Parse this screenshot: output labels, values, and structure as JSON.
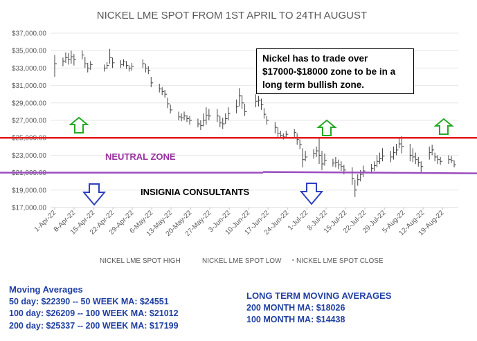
{
  "chart_data": {
    "type": "candlestick",
    "title": "NICKEL LME SPOT FROM 1ST APRIL TO 24TH AUGUST",
    "ylim": [
      17000,
      37000
    ],
    "y_ticks": [
      "$17,000.00",
      "$19,000.00",
      "$21,000.00",
      "$23,000.00",
      "$25,000.00",
      "$27,000.00",
      "$29,000.00",
      "$31,000.00",
      "$33,000.00",
      "$35,000.00",
      "$37,000.00"
    ],
    "x_ticks": [
      "1-Apr-22",
      "8-Apr-22",
      "15-Apr-22",
      "22-Apr-22",
      "29-Apr-22",
      "6-May-22",
      "13-May-22",
      "20-May-22",
      "27-May-22",
      "3-Jun-22",
      "10-Jun-22",
      "17-Jun-22",
      "24-Jun-22",
      "1-Jul-22",
      "8-Jul-22",
      "15-Jul-22",
      "22-Jul-22",
      "29-Jul-22",
      "5-Aug-22",
      "12-Aug-22",
      "19-Aug-22"
    ],
    "legend_position": "bottom",
    "series": [
      {
        "name": "NICKEL LME SPOT HIGH"
      },
      {
        "name": "NICKEL LME SPOT LOW"
      },
      {
        "name": "NICKEL LME SPOT CLOSE"
      }
    ],
    "candles": [
      {
        "d": "2022-04-01",
        "h": 34500,
        "l": 32000,
        "c": 33500
      },
      {
        "d": "2022-04-04",
        "h": 34200,
        "l": 33200,
        "c": 33800
      },
      {
        "d": "2022-04-05",
        "h": 34800,
        "l": 33600,
        "c": 34200
      },
      {
        "d": "2022-04-06",
        "h": 34700,
        "l": 33400,
        "c": 34000
      },
      {
        "d": "2022-04-07",
        "h": 35000,
        "l": 33500,
        "c": 34300
      },
      {
        "d": "2022-04-08",
        "h": 34600,
        "l": 33300,
        "c": 34000
      },
      {
        "d": "2022-04-11",
        "h": 35000,
        "l": 34000,
        "c": 34500
      },
      {
        "d": "2022-04-12",
        "h": 34300,
        "l": 33000,
        "c": 33500
      },
      {
        "d": "2022-04-13",
        "h": 33600,
        "l": 32500,
        "c": 33000
      },
      {
        "d": "2022-04-14",
        "h": 33800,
        "l": 32800,
        "c": 33400
      },
      {
        "d": "2022-04-19",
        "h": 33400,
        "l": 32600,
        "c": 33000
      },
      {
        "d": "2022-04-20",
        "h": 33700,
        "l": 32900,
        "c": 33300
      },
      {
        "d": "2022-04-21",
        "h": 35200,
        "l": 33500,
        "c": 34200
      },
      {
        "d": "2022-04-22",
        "h": 34200,
        "l": 33000,
        "c": 33600
      },
      {
        "d": "2022-04-25",
        "h": 33900,
        "l": 33000,
        "c": 33400
      },
      {
        "d": "2022-04-26",
        "h": 34000,
        "l": 33200,
        "c": 33700
      },
      {
        "d": "2022-04-27",
        "h": 33800,
        "l": 32900,
        "c": 33300
      },
      {
        "d": "2022-04-28",
        "h": 33300,
        "l": 32600,
        "c": 33000
      },
      {
        "d": "2022-04-29",
        "h": 33600,
        "l": 32700,
        "c": 33200
      },
      {
        "d": "2022-05-03",
        "h": 34000,
        "l": 33000,
        "c": 33500
      },
      {
        "d": "2022-05-04",
        "h": 33500,
        "l": 32500,
        "c": 33000
      },
      {
        "d": "2022-05-05",
        "h": 33200,
        "l": 32300,
        "c": 32700
      },
      {
        "d": "2022-05-06",
        "h": 32000,
        "l": 30800,
        "c": 31300
      },
      {
        "d": "2022-05-09",
        "h": 31200,
        "l": 30200,
        "c": 30600
      },
      {
        "d": "2022-05-10",
        "h": 30800,
        "l": 29900,
        "c": 30300
      },
      {
        "d": "2022-05-11",
        "h": 30500,
        "l": 29600,
        "c": 30000
      },
      {
        "d": "2022-05-12",
        "h": 29600,
        "l": 28400,
        "c": 28900
      },
      {
        "d": "2022-05-13",
        "h": 28800,
        "l": 27800,
        "c": 28200
      },
      {
        "d": "2022-05-16",
        "h": 28000,
        "l": 27000,
        "c": 27400
      },
      {
        "d": "2022-05-17",
        "h": 27800,
        "l": 26900,
        "c": 27300
      },
      {
        "d": "2022-05-18",
        "h": 28000,
        "l": 27000,
        "c": 27500
      },
      {
        "d": "2022-05-19",
        "h": 27600,
        "l": 26800,
        "c": 27200
      },
      {
        "d": "2022-05-20",
        "h": 27500,
        "l": 26500,
        "c": 27000
      },
      {
        "d": "2022-05-23",
        "h": 27200,
        "l": 26200,
        "c": 26600
      },
      {
        "d": "2022-05-24",
        "h": 27000,
        "l": 25900,
        "c": 26400
      },
      {
        "d": "2022-05-25",
        "h": 27800,
        "l": 26300,
        "c": 27000
      },
      {
        "d": "2022-05-26",
        "h": 28500,
        "l": 26500,
        "c": 27600
      },
      {
        "d": "2022-05-27",
        "h": 28300,
        "l": 27000,
        "c": 27500
      },
      {
        "d": "2022-05-30",
        "h": 28300,
        "l": 26800,
        "c": 27500
      },
      {
        "d": "2022-05-31",
        "h": 27500,
        "l": 26200,
        "c": 26700
      },
      {
        "d": "2022-06-01",
        "h": 27300,
        "l": 26000,
        "c": 26600
      },
      {
        "d": "2022-06-02",
        "h": 27800,
        "l": 26600,
        "c": 27200
      },
      {
        "d": "2022-06-03",
        "h": 28500,
        "l": 27000,
        "c": 27800
      },
      {
        "d": "2022-06-06",
        "h": 29400,
        "l": 27800,
        "c": 28600
      },
      {
        "d": "2022-06-07",
        "h": 30700,
        "l": 28600,
        "c": 29800
      },
      {
        "d": "2022-06-08",
        "h": 29900,
        "l": 28300,
        "c": 29000
      },
      {
        "d": "2022-06-09",
        "h": 28900,
        "l": 27500,
        "c": 28000
      },
      {
        "d": "2022-06-13",
        "h": 30000,
        "l": 28500,
        "c": 29200
      },
      {
        "d": "2022-06-14",
        "h": 29800,
        "l": 28600,
        "c": 29300
      },
      {
        "d": "2022-06-15",
        "h": 29500,
        "l": 28200,
        "c": 28800
      },
      {
        "d": "2022-06-16",
        "h": 28400,
        "l": 27200,
        "c": 27700
      },
      {
        "d": "2022-06-17",
        "h": 27500,
        "l": 26500,
        "c": 27000
      },
      {
        "d": "2022-06-20",
        "h": 26800,
        "l": 25500,
        "c": 26200
      },
      {
        "d": "2022-06-21",
        "h": 26200,
        "l": 25000,
        "c": 25500
      },
      {
        "d": "2022-06-22",
        "h": 25800,
        "l": 24900,
        "c": 25300
      },
      {
        "d": "2022-06-23",
        "h": 25500,
        "l": 24800,
        "c": 25100
      },
      {
        "d": "2022-06-24",
        "h": 25800,
        "l": 25000,
        "c": 25400
      },
      {
        "d": "2022-06-27",
        "h": 26000,
        "l": 25100,
        "c": 25600
      },
      {
        "d": "2022-06-28",
        "h": 25500,
        "l": 24200,
        "c": 24800
      },
      {
        "d": "2022-06-29",
        "h": 24800,
        "l": 23700,
        "c": 24200
      },
      {
        "d": "2022-06-30",
        "h": 23800,
        "l": 21600,
        "c": 22500
      },
      {
        "d": "2022-07-01",
        "h": 23500,
        "l": 22300,
        "c": 22800
      },
      {
        "d": "2022-07-04",
        "h": 23700,
        "l": 22600,
        "c": 23200
      },
      {
        "d": "2022-07-05",
        "h": 24000,
        "l": 22800,
        "c": 23500
      },
      {
        "d": "2022-07-06",
        "h": 25000,
        "l": 22000,
        "c": 23000
      },
      {
        "d": "2022-07-07",
        "h": 23500,
        "l": 21300,
        "c": 22000
      },
      {
        "d": "2022-07-08",
        "h": 23200,
        "l": 21800,
        "c": 22400
      },
      {
        "d": "2022-07-11",
        "h": 22600,
        "l": 21700,
        "c": 22100
      },
      {
        "d": "2022-07-12",
        "h": 22800,
        "l": 21600,
        "c": 22200
      },
      {
        "d": "2022-07-13",
        "h": 22500,
        "l": 21400,
        "c": 21900
      },
      {
        "d": "2022-07-14",
        "h": 22300,
        "l": 21200,
        "c": 21700
      },
      {
        "d": "2022-07-15",
        "h": 21900,
        "l": 20800,
        "c": 21300
      },
      {
        "d": "2022-07-18",
        "h": 21600,
        "l": 19600,
        "c": 20300
      },
      {
        "d": "2022-07-19",
        "h": 20200,
        "l": 18200,
        "c": 19000
      },
      {
        "d": "2022-07-20",
        "h": 20800,
        "l": 19500,
        "c": 20200
      },
      {
        "d": "2022-07-21",
        "h": 21300,
        "l": 20000,
        "c": 20800
      },
      {
        "d": "2022-07-22",
        "h": 21800,
        "l": 20500,
        "c": 21200
      },
      {
        "d": "2022-07-25",
        "h": 22000,
        "l": 20900,
        "c": 21500
      },
      {
        "d": "2022-07-26",
        "h": 22300,
        "l": 21200,
        "c": 21800
      },
      {
        "d": "2022-07-27",
        "h": 23000,
        "l": 21600,
        "c": 22300
      },
      {
        "d": "2022-07-28",
        "h": 23300,
        "l": 22000,
        "c": 22600
      },
      {
        "d": "2022-07-29",
        "h": 23800,
        "l": 22300,
        "c": 22900
      },
      {
        "d": "2022-08-01",
        "h": 23500,
        "l": 22200,
        "c": 22800
      },
      {
        "d": "2022-08-02",
        "h": 24000,
        "l": 22500,
        "c": 23300
      },
      {
        "d": "2022-08-03",
        "h": 24300,
        "l": 23000,
        "c": 23600
      },
      {
        "d": "2022-08-04",
        "h": 25000,
        "l": 23800,
        "c": 24300
      },
      {
        "d": "2022-08-05",
        "h": 25200,
        "l": 23200,
        "c": 24000
      },
      {
        "d": "2022-08-08",
        "h": 24300,
        "l": 22300,
        "c": 23000
      },
      {
        "d": "2022-08-09",
        "h": 23800,
        "l": 22200,
        "c": 22800
      },
      {
        "d": "2022-08-10",
        "h": 23300,
        "l": 22000,
        "c": 22500
      },
      {
        "d": "2022-08-11",
        "h": 22800,
        "l": 21700,
        "c": 22200
      },
      {
        "d": "2022-08-12",
        "h": 22300,
        "l": 21000,
        "c": 21700
      },
      {
        "d": "2022-08-15",
        "h": 24000,
        "l": 22500,
        "c": 23300
      },
      {
        "d": "2022-08-16",
        "h": 24200,
        "l": 23000,
        "c": 23600
      },
      {
        "d": "2022-08-17",
        "h": 23300,
        "l": 22300,
        "c": 22800
      },
      {
        "d": "2022-08-18",
        "h": 23000,
        "l": 22000,
        "c": 22500
      },
      {
        "d": "2022-08-19",
        "h": 22800,
        "l": 21900,
        "c": 22300
      },
      {
        "d": "2022-08-22",
        "h": 23000,
        "l": 22000,
        "c": 22500
      },
      {
        "d": "2022-08-23",
        "h": 22900,
        "l": 22100,
        "c": 22400
      },
      {
        "d": "2022-08-24",
        "h": 22400,
        "l": 21600,
        "c": 21900
      }
    ],
    "resistance_level": 25000,
    "support_level": 21000
  },
  "annotations": {
    "note_box": [
      "Nickel has to trade over",
      "$17000-$18000 zone to be in a",
      "long term bullish zone."
    ],
    "neutral_zone": "NEUTRAL ZONE",
    "watermark": "INSIGNIA CONSULTANTS"
  },
  "moving_averages": {
    "title": "Moving Averages",
    "lines": [
      "50 day: $22390 --  50 WEEK MA: $24551",
      "100 day: $26209 -- 100 WEEK MA: $21012",
      "200 day: $25337 -- 200 WEEK MA: $17199"
    ]
  },
  "long_term_moving_averages": {
    "title": "LONG TERM MOVING AVERAGES",
    "lines": [
      "200 MONTH MA: $18026",
      "100 MONTH MA: $14438"
    ]
  },
  "colors": {
    "resistance_line": "#e31a1c",
    "support_line": "#9b4dbf",
    "up_arrow": "#22aa22",
    "down_arrow": "#2e3fbf",
    "neutral_text": "#9b30a0",
    "ma_text": "#1f3fa3"
  }
}
